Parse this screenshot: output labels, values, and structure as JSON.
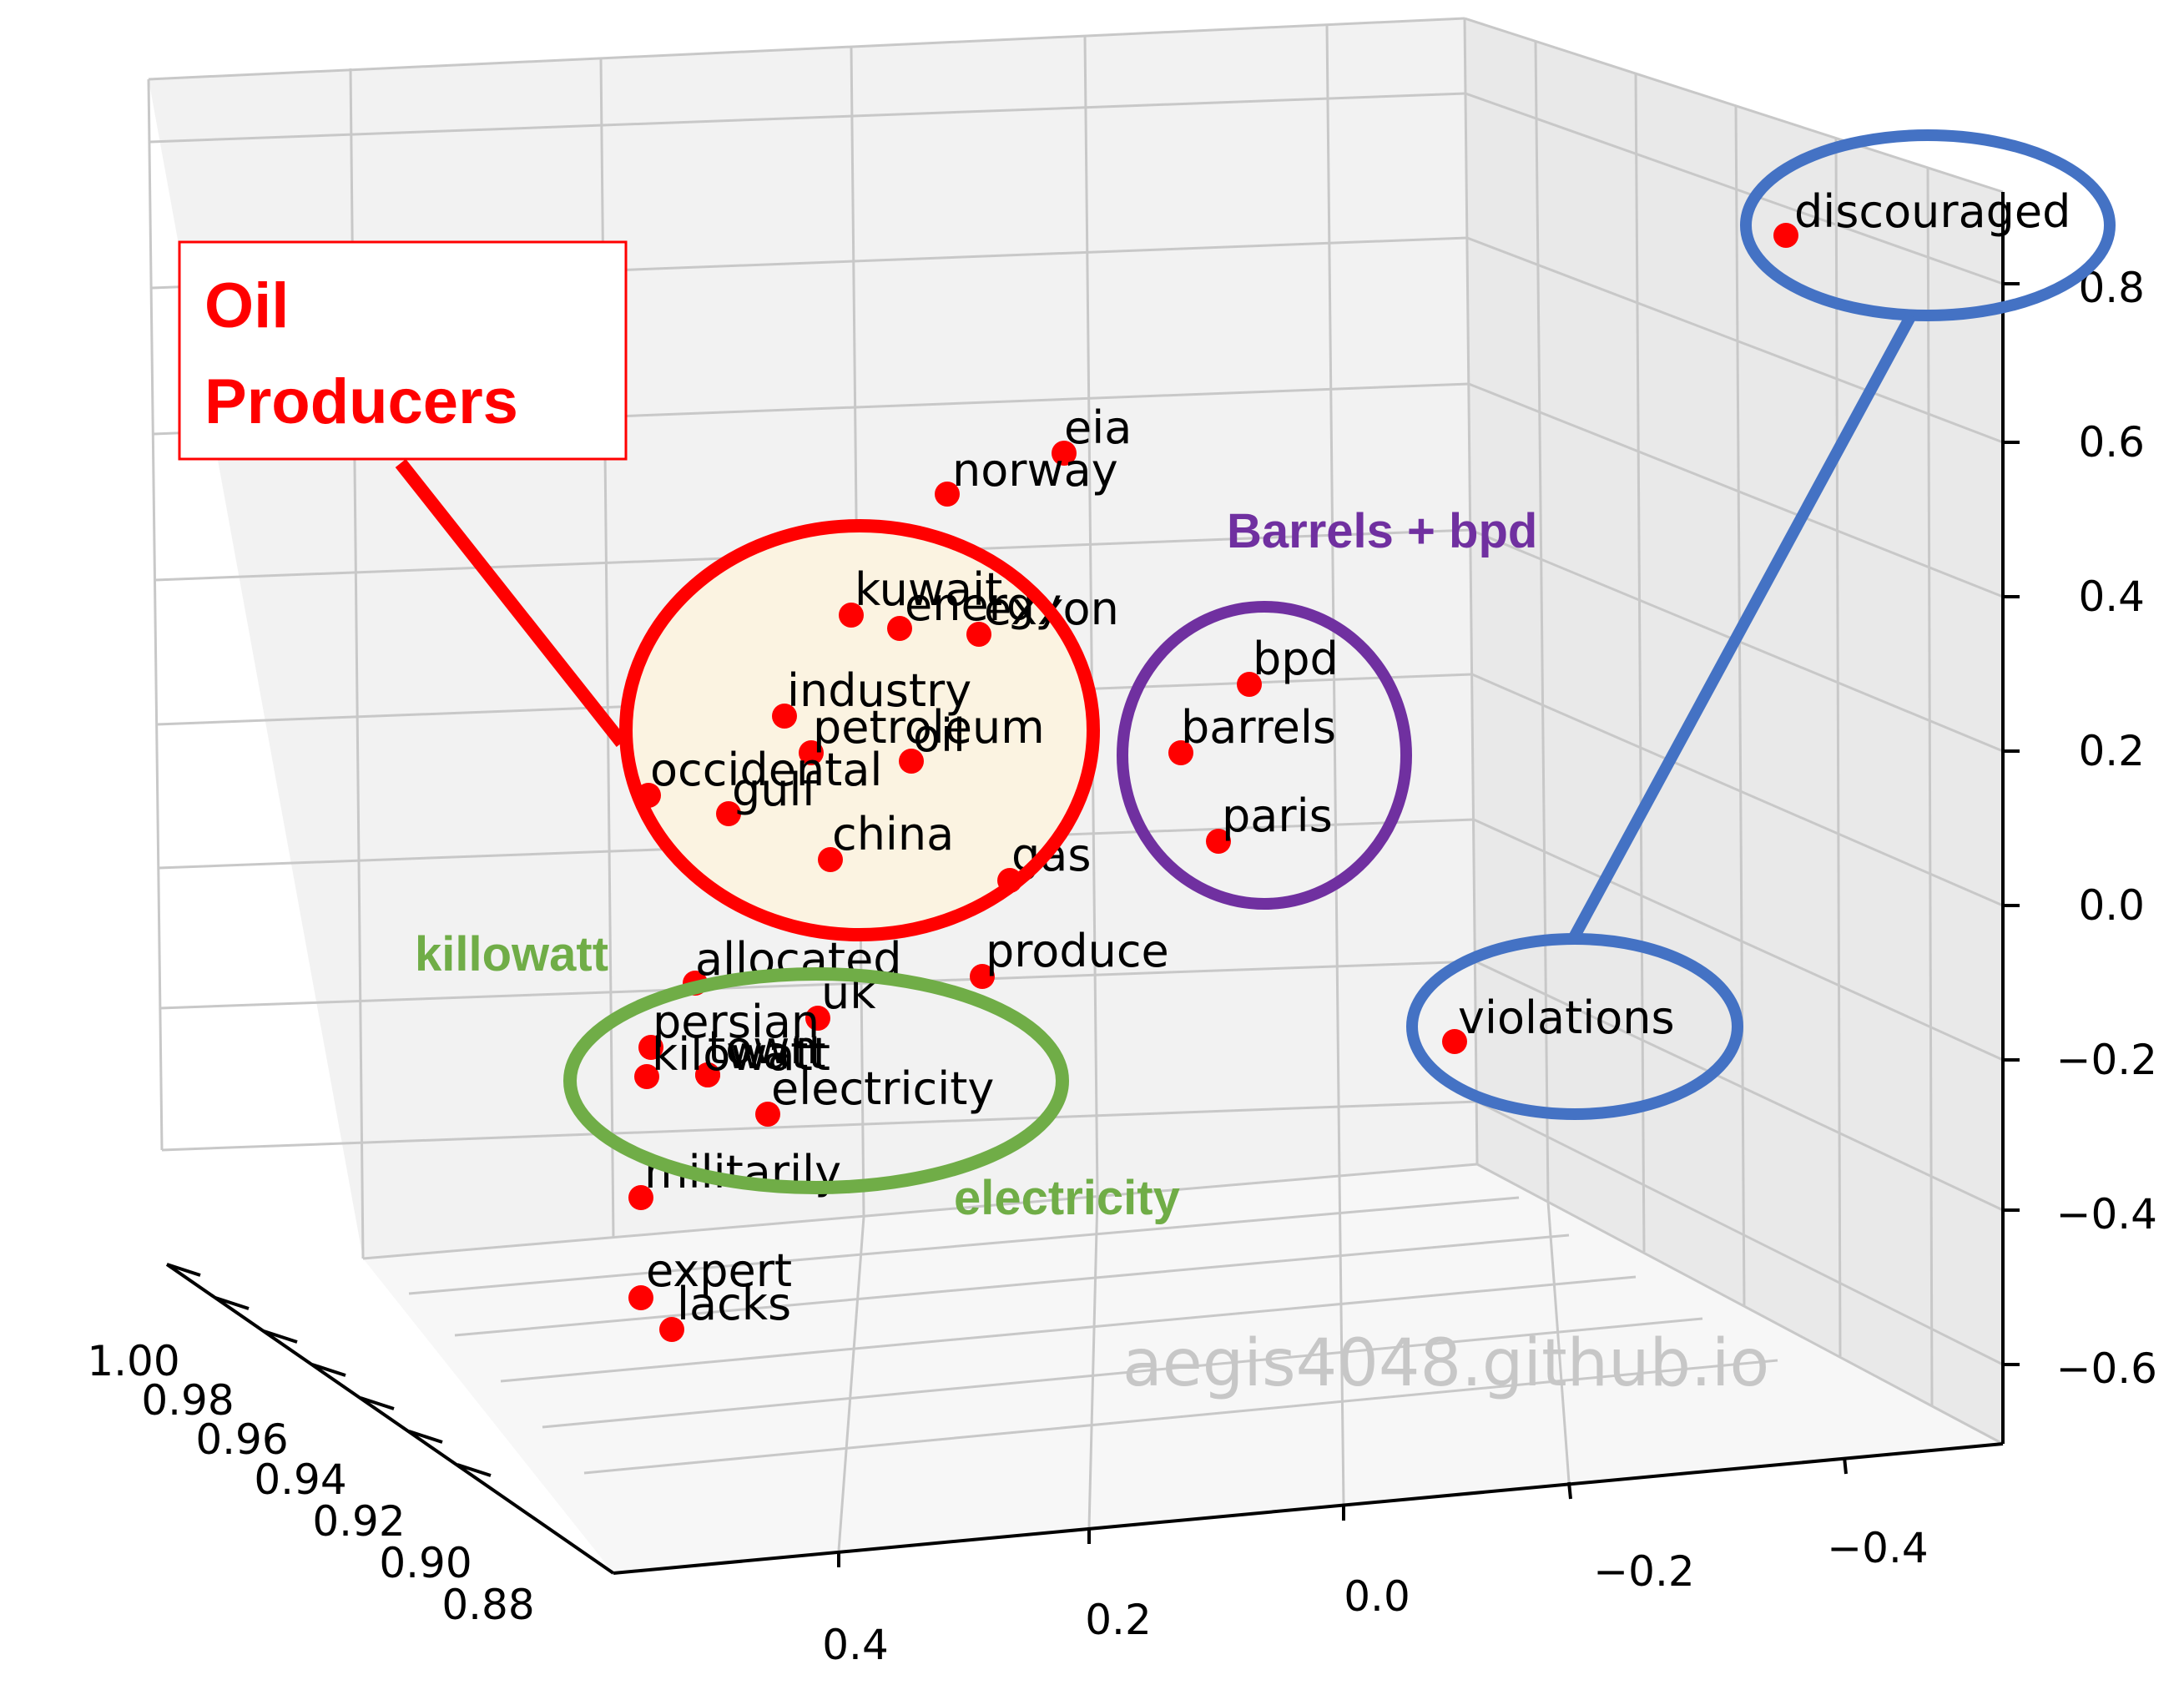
{
  "chart_data": {
    "type": "scatter",
    "projection": "3d",
    "grid": true,
    "axis_ticks": {
      "x": [
        "1.00",
        "0.98",
        "0.96",
        "0.94",
        "0.92",
        "0.90",
        "0.88"
      ],
      "y": [
        "0.4",
        "0.2",
        "0.0",
        "−0.2",
        "−0.4"
      ],
      "z": [
        "0.8",
        "0.6",
        "0.4",
        "0.2",
        "0.0",
        "−0.2",
        "−0.4",
        "−0.6"
      ]
    },
    "points": [
      {
        "label": "discouraged"
      },
      {
        "label": "eia"
      },
      {
        "label": "norway"
      },
      {
        "label": "kuwait"
      },
      {
        "label": "energy"
      },
      {
        "label": "exxon"
      },
      {
        "label": "industry"
      },
      {
        "label": "petroleum"
      },
      {
        "label": "oil"
      },
      {
        "label": "occidental"
      },
      {
        "label": "gulf"
      },
      {
        "label": "china"
      },
      {
        "label": "gas"
      },
      {
        "label": "bpd"
      },
      {
        "label": "barrels"
      },
      {
        "label": "paris"
      },
      {
        "label": "allocated"
      },
      {
        "label": "produce"
      },
      {
        "label": "uk"
      },
      {
        "label": "persian"
      },
      {
        "label": "kilowatt"
      },
      {
        "label": "town"
      },
      {
        "label": "watt"
      },
      {
        "label": "electricity"
      },
      {
        "label": "militarily"
      },
      {
        "label": "violations"
      },
      {
        "label": "expert"
      },
      {
        "label": "lacks"
      }
    ],
    "annotations": {
      "oil_producers": "Oil\nProducers",
      "barrels_bpd": "Barrels + bpd",
      "killowatt": "killowatt",
      "electricity": "electricity"
    },
    "colors": {
      "points": "#ff0000",
      "oil_group": "#ff0000",
      "oil_fill": "#fbf3e1",
      "barrels_group": "#7030a0",
      "electric_group": "#70ad47",
      "discouraged_group": "#4472c4"
    },
    "watermark": "aegis4048.github.io"
  }
}
